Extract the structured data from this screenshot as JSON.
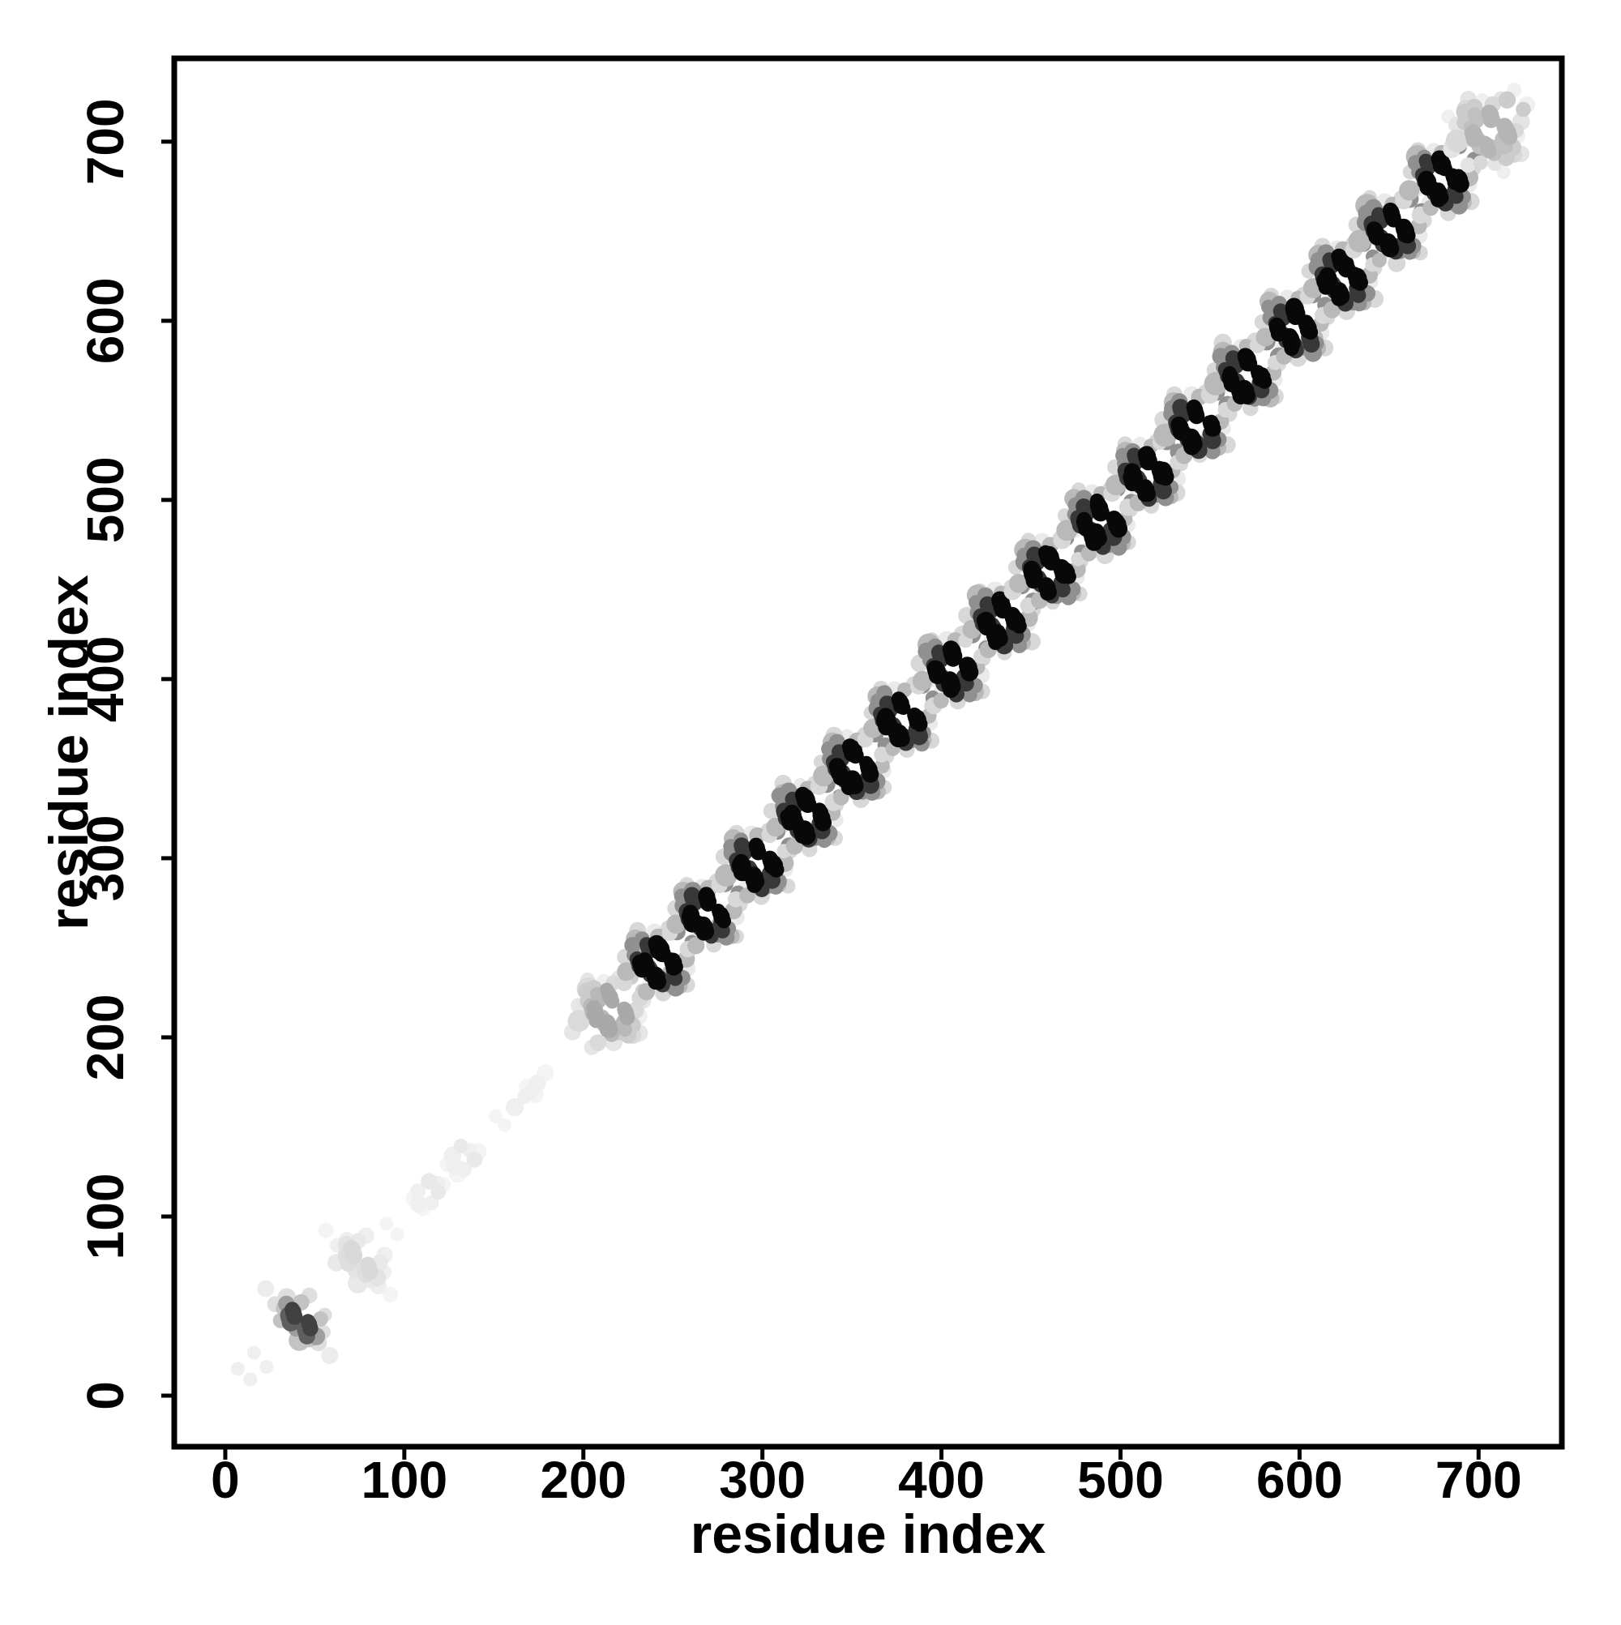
{
  "chart_data": {
    "type": "scatter",
    "title": "",
    "xlabel": "residue index",
    "ylabel": "residue index",
    "x_ticks": [
      0,
      100,
      200,
      300,
      400,
      500,
      600,
      700
    ],
    "y_ticks": [
      0,
      100,
      200,
      300,
      400,
      500,
      600,
      700
    ],
    "x_range": [
      -28.5,
      746.5
    ],
    "y_range": [
      -28.5,
      746.5
    ],
    "grid": false,
    "legend": "none",
    "marker": {
      "shape": "circle",
      "radius_units": 4.2
    },
    "axis_color": "#000000",
    "background": "#ffffff",
    "palettes": {
      "dark": [
        "#080808",
        "#383838",
        "#909090",
        "#b9b9b9",
        "#d8d8d8",
        "#eaeaea"
      ],
      "medium": [
        "#414141",
        "#5e5e5e",
        "#9e9e9e",
        "#c3c3c3",
        "#dedede",
        "#ececec"
      ],
      "lightmid": [
        "#a9a9a9",
        "#b8b8b8",
        "#cccccc",
        "#dadada",
        "#e6e6e6",
        "#f0f0f0"
      ],
      "gray": [
        "#b5b5b5",
        "#c0c0c0",
        "#cccccc",
        "#d8d8d8",
        "#e4e4e4",
        "#f0f0f0"
      ],
      "pale": [
        "#d9d9d9",
        "#dedede",
        "#e3e3e3",
        "#e9e9e9",
        "#efefef",
        "#f4f4f4"
      ]
    },
    "motifs": {
      "flower": [
        [
          -17,
          4,
          4
        ],
        [
          4,
          -17,
          4
        ],
        [
          19,
          7,
          4
        ],
        [
          7,
          19,
          4
        ],
        [
          -11,
          18,
          4
        ],
        [
          18,
          -11,
          4
        ],
        [
          -19,
          -10,
          4
        ],
        [
          -10,
          -19,
          4
        ],
        [
          23,
          15,
          5
        ],
        [
          15,
          23,
          5
        ],
        [
          -2,
          17,
          5
        ],
        [
          17,
          -2,
          5
        ],
        [
          10,
          -7,
          3
        ],
        [
          -7,
          10,
          3
        ],
        [
          14,
          -12,
          3
        ],
        [
          -12,
          14,
          3
        ],
        [
          16,
          2,
          3
        ],
        [
          2,
          16,
          3
        ],
        [
          -16,
          -5,
          3
        ],
        [
          -5,
          -16,
          3
        ],
        [
          -12,
          6,
          2
        ],
        [
          6,
          -12,
          2
        ],
        [
          -13,
          11,
          2
        ],
        [
          11,
          -13,
          2
        ],
        [
          -8,
          14,
          2
        ],
        [
          14,
          -8,
          2
        ],
        [
          12,
          19,
          2
        ],
        [
          19,
          12,
          2
        ],
        [
          -6,
          9,
          1
        ],
        [
          9,
          -6,
          1
        ],
        [
          -10,
          2,
          1
        ],
        [
          2,
          -10,
          1
        ],
        [
          -4,
          -4,
          1
        ],
        [
          1.5,
          9,
          0
        ],
        [
          9,
          1.5,
          0
        ],
        [
          -7,
          0,
          0
        ],
        [
          0,
          -7,
          0
        ],
        [
          0.5,
          10.5,
          0
        ],
        [
          10.5,
          0.5,
          0
        ],
        [
          -8,
          -1.5,
          0
        ],
        [
          -1.5,
          -8,
          0
        ]
      ],
      "mini": [
        [
          -20,
          16,
          5
        ],
        [
          16,
          -20,
          5
        ],
        [
          3,
          13,
          4
        ],
        [
          13,
          3,
          4
        ],
        [
          9,
          -14,
          4
        ],
        [
          -14,
          9,
          4
        ],
        [
          12,
          -8,
          4
        ],
        [
          -8,
          12,
          4
        ],
        [
          -13,
          -1,
          3
        ],
        [
          -1,
          -13,
          3
        ],
        [
          -1,
          10,
          3
        ],
        [
          10,
          -1,
          3
        ],
        [
          5,
          -10,
          3
        ],
        [
          -10,
          5,
          3
        ],
        [
          -6,
          -3,
          2
        ],
        [
          -3,
          -6,
          2
        ],
        [
          -9,
          8,
          2
        ],
        [
          8,
          -9,
          2
        ],
        [
          -7,
          1,
          1
        ],
        [
          1,
          -7,
          1
        ],
        [
          -4,
          4,
          0
        ],
        [
          4,
          -4,
          0
        ]
      ],
      "tiny": [
        [
          0,
          7,
          3
        ],
        [
          7,
          0,
          3
        ],
        [
          -6,
          2,
          4
        ],
        [
          2,
          -6,
          4
        ],
        [
          -4,
          -5,
          4
        ],
        [
          5,
          6,
          4
        ],
        [
          -8,
          -3,
          5
        ],
        [
          -3,
          -8,
          5
        ],
        [
          8,
          4,
          5
        ]
      ],
      "chain": [
        [
          -9,
          -9,
          4
        ],
        [
          -4,
          -4,
          4
        ],
        [
          0,
          0,
          4
        ],
        [
          5,
          5,
          4
        ],
        [
          9,
          10,
          5
        ],
        [
          -2,
          3,
          5
        ],
        [
          3,
          -2,
          5
        ]
      ]
    },
    "clusters": [
      {
        "center": 43,
        "motif": "mini",
        "palette": "medium"
      },
      {
        "center": 76,
        "motif": "mini",
        "palette": "pale"
      },
      {
        "center": 113,
        "motif": "tiny",
        "palette": "pale"
      },
      {
        "center": 132,
        "motif": "tiny",
        "palette": "pale"
      },
      {
        "center": 170,
        "motif": "chain",
        "palette": "pale"
      },
      {
        "center": 214,
        "motif": "flower",
        "palette": "lightmid"
      },
      {
        "center": 241,
        "motif": "flower",
        "palette": "dark"
      },
      {
        "center": 268,
        "motif": "flower",
        "palette": "dark"
      },
      {
        "center": 296,
        "motif": "flower",
        "palette": "dark"
      },
      {
        "center": 323,
        "motif": "flower",
        "palette": "dark"
      },
      {
        "center": 350,
        "motif": "flower",
        "palette": "dark"
      },
      {
        "center": 377,
        "motif": "flower",
        "palette": "dark"
      },
      {
        "center": 405,
        "motif": "flower",
        "palette": "dark"
      },
      {
        "center": 432,
        "motif": "flower",
        "palette": "dark"
      },
      {
        "center": 459,
        "motif": "flower",
        "palette": "dark"
      },
      {
        "center": 487,
        "motif": "flower",
        "palette": "dark"
      },
      {
        "center": 514,
        "motif": "flower",
        "palette": "dark"
      },
      {
        "center": 541,
        "motif": "flower",
        "palette": "dark"
      },
      {
        "center": 569,
        "motif": "flower",
        "palette": "dark"
      },
      {
        "center": 596,
        "motif": "flower",
        "palette": "dark"
      },
      {
        "center": 623,
        "motif": "flower",
        "palette": "dark"
      },
      {
        "center": 650,
        "motif": "flower",
        "palette": "dark"
      },
      {
        "center": 678,
        "motif": "flower",
        "palette": "dark"
      },
      {
        "center": 705,
        "motif": "flower",
        "palette": "gray"
      }
    ],
    "extra_points": [
      [
        7,
        15,
        4
      ],
      [
        14,
        9,
        4
      ],
      [
        16,
        24,
        4
      ],
      [
        23,
        16,
        4
      ],
      [
        90,
        96,
        5
      ],
      [
        96,
        90,
        5
      ],
      [
        151,
        156,
        5
      ],
      [
        156,
        151,
        5
      ],
      [
        683,
        714,
        4
      ],
      [
        714,
        683,
        4
      ]
    ]
  }
}
